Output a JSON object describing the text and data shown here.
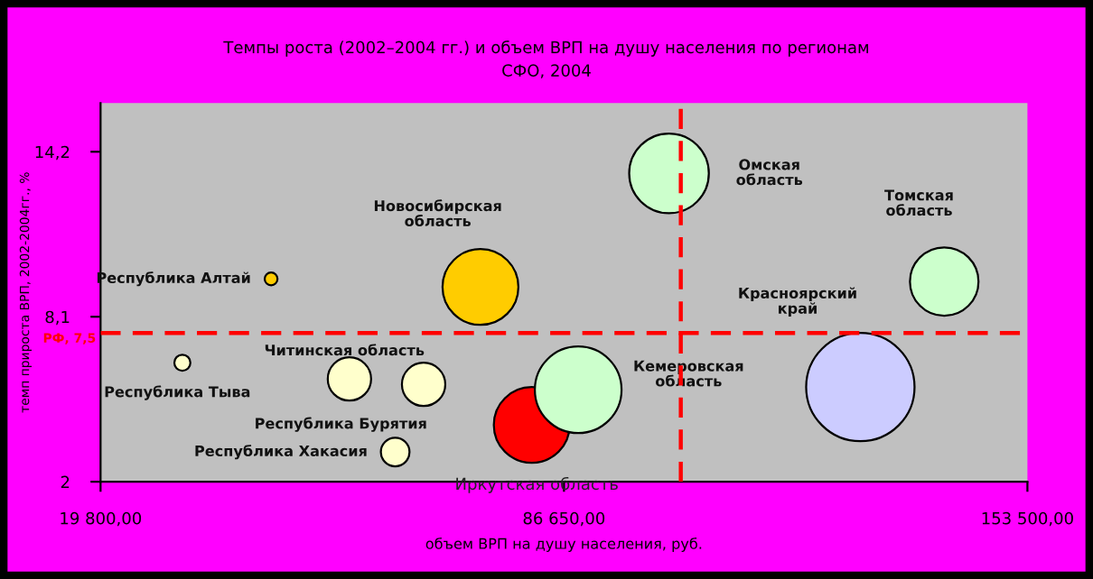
{
  "chart_data": {
    "type": "bubble",
    "title": "Темпы роста (2002–2004 гг.) и объем ВРП на душу населения по регионам\nСФО, 2004",
    "xlabel": "объем ВРП на душу населения, руб.",
    "ylabel": "темп прироста ВРП, 2002-2004гг., %",
    "xlim": [
      19800,
      153500
    ],
    "ylim": [
      2,
      16
    ],
    "xticks": [
      {
        "value": 19800,
        "label": "19 800,00"
      },
      {
        "value": 86650,
        "label": "86 650,00"
      },
      {
        "value": 153500,
        "label": "153 500,00"
      }
    ],
    "yticks": [
      {
        "value": 2,
        "label": "2"
      },
      {
        "value": 8.1,
        "label": "8,1"
      },
      {
        "value": 14.2,
        "label": "14,2"
      }
    ],
    "grid": false,
    "legend": false,
    "ref_lines": [
      {
        "axis": "y",
        "value": 7.5,
        "label": "РФ, 7,5",
        "color": "#ff0000",
        "line_style": "dashed"
      },
      {
        "axis": "x",
        "value": 103500,
        "color": "#ff0000",
        "line_style": "dashed"
      }
    ],
    "series": [
      {
        "name": "Республика Алтай",
        "color": "#ffcc00",
        "x": [
          44400
        ],
        "values": [
          9.5
        ],
        "sizes": [
          0.014
        ]
      },
      {
        "name": "Новосибирская\nобласть",
        "color": "#ffcc00",
        "x": [
          74600
        ],
        "values": [
          9.2
        ],
        "sizes": [
          0.49
        ]
      },
      {
        "name": "Республика Тыва",
        "color": "#ffffcc",
        "x": [
          31600
        ],
        "values": [
          6.4
        ],
        "sizes": [
          0.022
        ]
      },
      {
        "name": "Читинская область",
        "color": "#ffffcc",
        "x": [
          55700
        ],
        "values": [
          5.8
        ],
        "sizes": [
          0.16
        ]
      },
      {
        "name": "Республика Бурятия",
        "color": "#ffffcc",
        "x": [
          66400
        ],
        "values": [
          5.6
        ],
        "sizes": [
          0.16
        ]
      },
      {
        "name": "Республика Хакасия",
        "color": "#ffffcc",
        "x": [
          62300
        ],
        "values": [
          3.1
        ],
        "sizes": [
          0.07
        ]
      },
      {
        "name": "Иркутская область",
        "color": "#ff0000",
        "x": [
          82000
        ],
        "values": [
          4.1
        ],
        "sizes": [
          0.49
        ]
      },
      {
        "name": "Кемеровская\nобласть",
        "color": "#ccffcc",
        "x": [
          88700
        ],
        "values": [
          5.4
        ],
        "sizes": [
          0.64
        ]
      },
      {
        "name": "Омская\nобласть",
        "color": "#ccffcc",
        "x": [
          101800
        ],
        "values": [
          13.4
        ],
        "sizes": [
          0.54
        ]
      },
      {
        "name": "Томская\nобласть",
        "color": "#ccffcc",
        "x": [
          141500
        ],
        "values": [
          9.4
        ],
        "sizes": [
          0.4
        ]
      },
      {
        "name": "Красноярский\nкрай",
        "color": "#ccccff",
        "x": [
          129400
        ],
        "values": [
          5.5
        ],
        "sizes": [
          1
        ]
      }
    ]
  }
}
